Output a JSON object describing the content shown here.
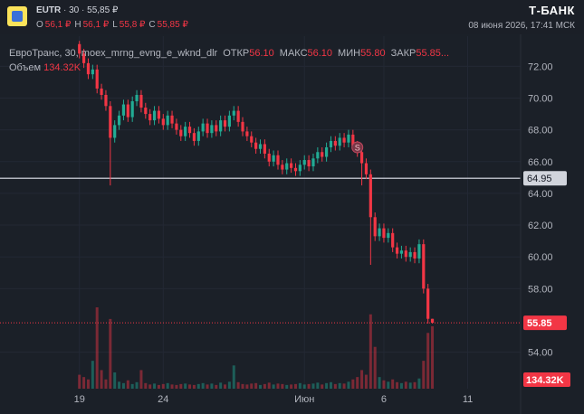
{
  "header": {
    "ticker": "EUTR",
    "interval": "30",
    "price": "55,85 ₽",
    "ohlc": [
      {
        "label": "O",
        "value": "56,1 ₽"
      },
      {
        "label": "H",
        "value": "56,1 ₽"
      },
      {
        "label": "L",
        "value": "55,8 ₽"
      },
      {
        "label": "C",
        "value": "55,85 ₽"
      }
    ],
    "brand": "Т-БАНК",
    "datetime": "08 июня 2026, 17:41 МСК"
  },
  "chart_data": {
    "type": "candlestick",
    "legend": {
      "name": "ЕвроТранс, 30, moex_mrng_evng_e_wknd_dlr",
      "items": [
        {
          "label": "ОТКР",
          "value": "56.10"
        },
        {
          "label": "МАКС",
          "value": "56.10"
        },
        {
          "label": "МИН",
          "value": "55.80"
        },
        {
          "label": "ЗАКР",
          "value": "55.85..."
        }
      ],
      "volume_label": "Объем",
      "volume_value": "134.32K"
    },
    "up_color": "#22ab94",
    "down_color": "#f23645",
    "grid": true,
    "xlim": [
      -18,
      100
    ],
    "ylim": [
      51.7,
      73.9
    ],
    "xticks": [
      {
        "value": 0,
        "label": "19"
      },
      {
        "value": 19,
        "label": "24"
      },
      {
        "value": 51,
        "label": "Июн"
      },
      {
        "value": 69,
        "label": "6"
      },
      {
        "value": 88,
        "label": "11"
      }
    ],
    "yticks": [
      {
        "value": 54,
        "label": "54.00"
      },
      {
        "value": 58,
        "label": "58.00"
      },
      {
        "value": 60,
        "label": "60.00"
      },
      {
        "value": 62,
        "label": "62.00"
      },
      {
        "value": 64,
        "label": "64.00"
      },
      {
        "value": 66,
        "label": "66.00"
      },
      {
        "value": 68,
        "label": "68.00"
      },
      {
        "value": 70,
        "label": "70.00"
      },
      {
        "value": 72,
        "label": "72.00"
      }
    ],
    "open": [
      73.4,
      72.8,
      72.2,
      71.5,
      71.8,
      70.6,
      70.2,
      69.5,
      67.5,
      68.3,
      68.9,
      69.6,
      68.8,
      69.8,
      70.2,
      69.4,
      69.0,
      68.6,
      69.2,
      68.7,
      68.3,
      68.9,
      68.4,
      68.0,
      67.6,
      68.2,
      67.8,
      67.3,
      67.9,
      68.4,
      67.8,
      68.3,
      67.9,
      68.6,
      68.2,
      68.9,
      69.2,
      68.5,
      67.9,
      67.6,
      67.2,
      66.8,
      67.1,
      66.5,
      66.0,
      66.4,
      65.8,
      65.5,
      65.9,
      65.6,
      65.4,
      65.8,
      66.1,
      65.7,
      66.2,
      66.6,
      66.3,
      66.9,
      67.3,
      67.0,
      67.5,
      67.2,
      67.7,
      67.0,
      66.6,
      65.9,
      65.2,
      62.5,
      61.3,
      61.8,
      61.2,
      61.5,
      60.6,
      60.2,
      60.4,
      60.0,
      60.3,
      59.9,
      60.8,
      58.0,
      56.1
    ],
    "high": [
      73.6,
      73.1,
      72.5,
      72.1,
      72.1,
      70.9,
      70.5,
      69.8,
      68.6,
      69.2,
      69.9,
      69.9,
      70.1,
      70.5,
      70.5,
      69.7,
      69.3,
      69.5,
      69.5,
      69.0,
      69.2,
      69.2,
      68.7,
      68.3,
      68.5,
      68.5,
      68.1,
      68.2,
      68.7,
      68.7,
      68.6,
      68.6,
      68.9,
      68.9,
      69.2,
      69.5,
      69.5,
      68.8,
      68.2,
      67.9,
      67.5,
      67.4,
      67.4,
      66.8,
      66.7,
      66.7,
      66.1,
      66.2,
      66.2,
      65.9,
      66.1,
      66.4,
      66.4,
      66.5,
      66.9,
      66.9,
      67.2,
      67.6,
      67.6,
      67.8,
      67.8,
      68.0,
      68.0,
      67.3,
      66.9,
      66.2,
      65.5,
      62.8,
      62.1,
      62.1,
      61.8,
      61.8,
      60.9,
      60.7,
      60.7,
      60.6,
      60.6,
      61.1,
      61.1,
      58.3,
      56.1
    ],
    "low": [
      72.5,
      71.9,
      71.2,
      71.2,
      70.3,
      69.9,
      69.2,
      64.5,
      67.2,
      68.0,
      68.6,
      68.5,
      68.5,
      69.5,
      69.1,
      68.7,
      68.3,
      68.3,
      68.4,
      68.0,
      68.0,
      68.1,
      67.7,
      67.3,
      67.3,
      67.5,
      67.0,
      67.0,
      67.6,
      67.5,
      67.5,
      67.6,
      67.6,
      67.9,
      67.9,
      68.6,
      68.2,
      67.6,
      67.3,
      66.9,
      66.5,
      66.5,
      66.2,
      65.7,
      65.7,
      65.5,
      65.2,
      65.2,
      65.3,
      65.1,
      65.1,
      65.5,
      65.4,
      65.4,
      65.9,
      66.0,
      66.0,
      66.6,
      66.7,
      66.7,
      66.9,
      66.9,
      66.7,
      66.3,
      64.5,
      64.9,
      59.5,
      61.0,
      61.0,
      60.9,
      60.9,
      60.3,
      59.9,
      59.9,
      59.7,
      59.7,
      59.6,
      59.6,
      57.7,
      55.8,
      55.8
    ],
    "close": [
      72.8,
      72.2,
      71.5,
      71.8,
      70.6,
      70.2,
      69.5,
      67.5,
      68.3,
      68.9,
      69.6,
      68.8,
      69.8,
      70.2,
      69.4,
      69.0,
      68.6,
      69.2,
      68.7,
      68.3,
      68.9,
      68.4,
      68.0,
      67.6,
      68.2,
      67.8,
      67.3,
      67.9,
      68.4,
      67.8,
      68.3,
      67.9,
      68.6,
      68.2,
      68.9,
      69.2,
      68.5,
      67.9,
      67.6,
      67.2,
      66.8,
      67.1,
      66.5,
      66.0,
      66.4,
      65.8,
      65.5,
      65.9,
      65.6,
      65.4,
      65.8,
      66.1,
      65.7,
      66.2,
      66.6,
      66.3,
      66.9,
      67.3,
      67.0,
      67.5,
      67.2,
      67.7,
      67.0,
      66.6,
      65.9,
      65.2,
      62.5,
      61.3,
      61.8,
      61.2,
      61.5,
      60.6,
      60.2,
      60.4,
      60.0,
      60.3,
      59.9,
      60.8,
      58.0,
      56.1,
      55.85
    ],
    "volume": [
      30000,
      25000,
      20000,
      60000,
      175000,
      40000,
      20000,
      150000,
      35000,
      15000,
      12000,
      18000,
      10000,
      14000,
      40000,
      12000,
      9000,
      11000,
      8000,
      10000,
      12000,
      9000,
      8000,
      10000,
      11000,
      9000,
      8000,
      10000,
      12000,
      9000,
      11000,
      8000,
      13000,
      9000,
      15000,
      50000,
      14000,
      10000,
      9000,
      11000,
      12000,
      8000,
      10000,
      13000,
      9000,
      11000,
      10000,
      8000,
      9000,
      10000,
      12000,
      9000,
      10000,
      11000,
      13000,
      9000,
      12000,
      14000,
      10000,
      12000,
      11000,
      15000,
      20000,
      25000,
      40000,
      30000,
      160000,
      90000,
      25000,
      18000,
      15000,
      20000,
      14000,
      12000,
      15000,
      13000,
      14000,
      22000,
      60000,
      120000,
      134320
    ],
    "volume_value_labels": {
      "80": "134.32K"
    },
    "hline": {
      "value": 64.95,
      "label": "64.95",
      "color": "#b2b5be"
    },
    "last_price": {
      "value": 55.85,
      "label": "55.85"
    },
    "markers": [
      {
        "x": 63,
        "y": 66.9,
        "label": "S"
      }
    ]
  }
}
